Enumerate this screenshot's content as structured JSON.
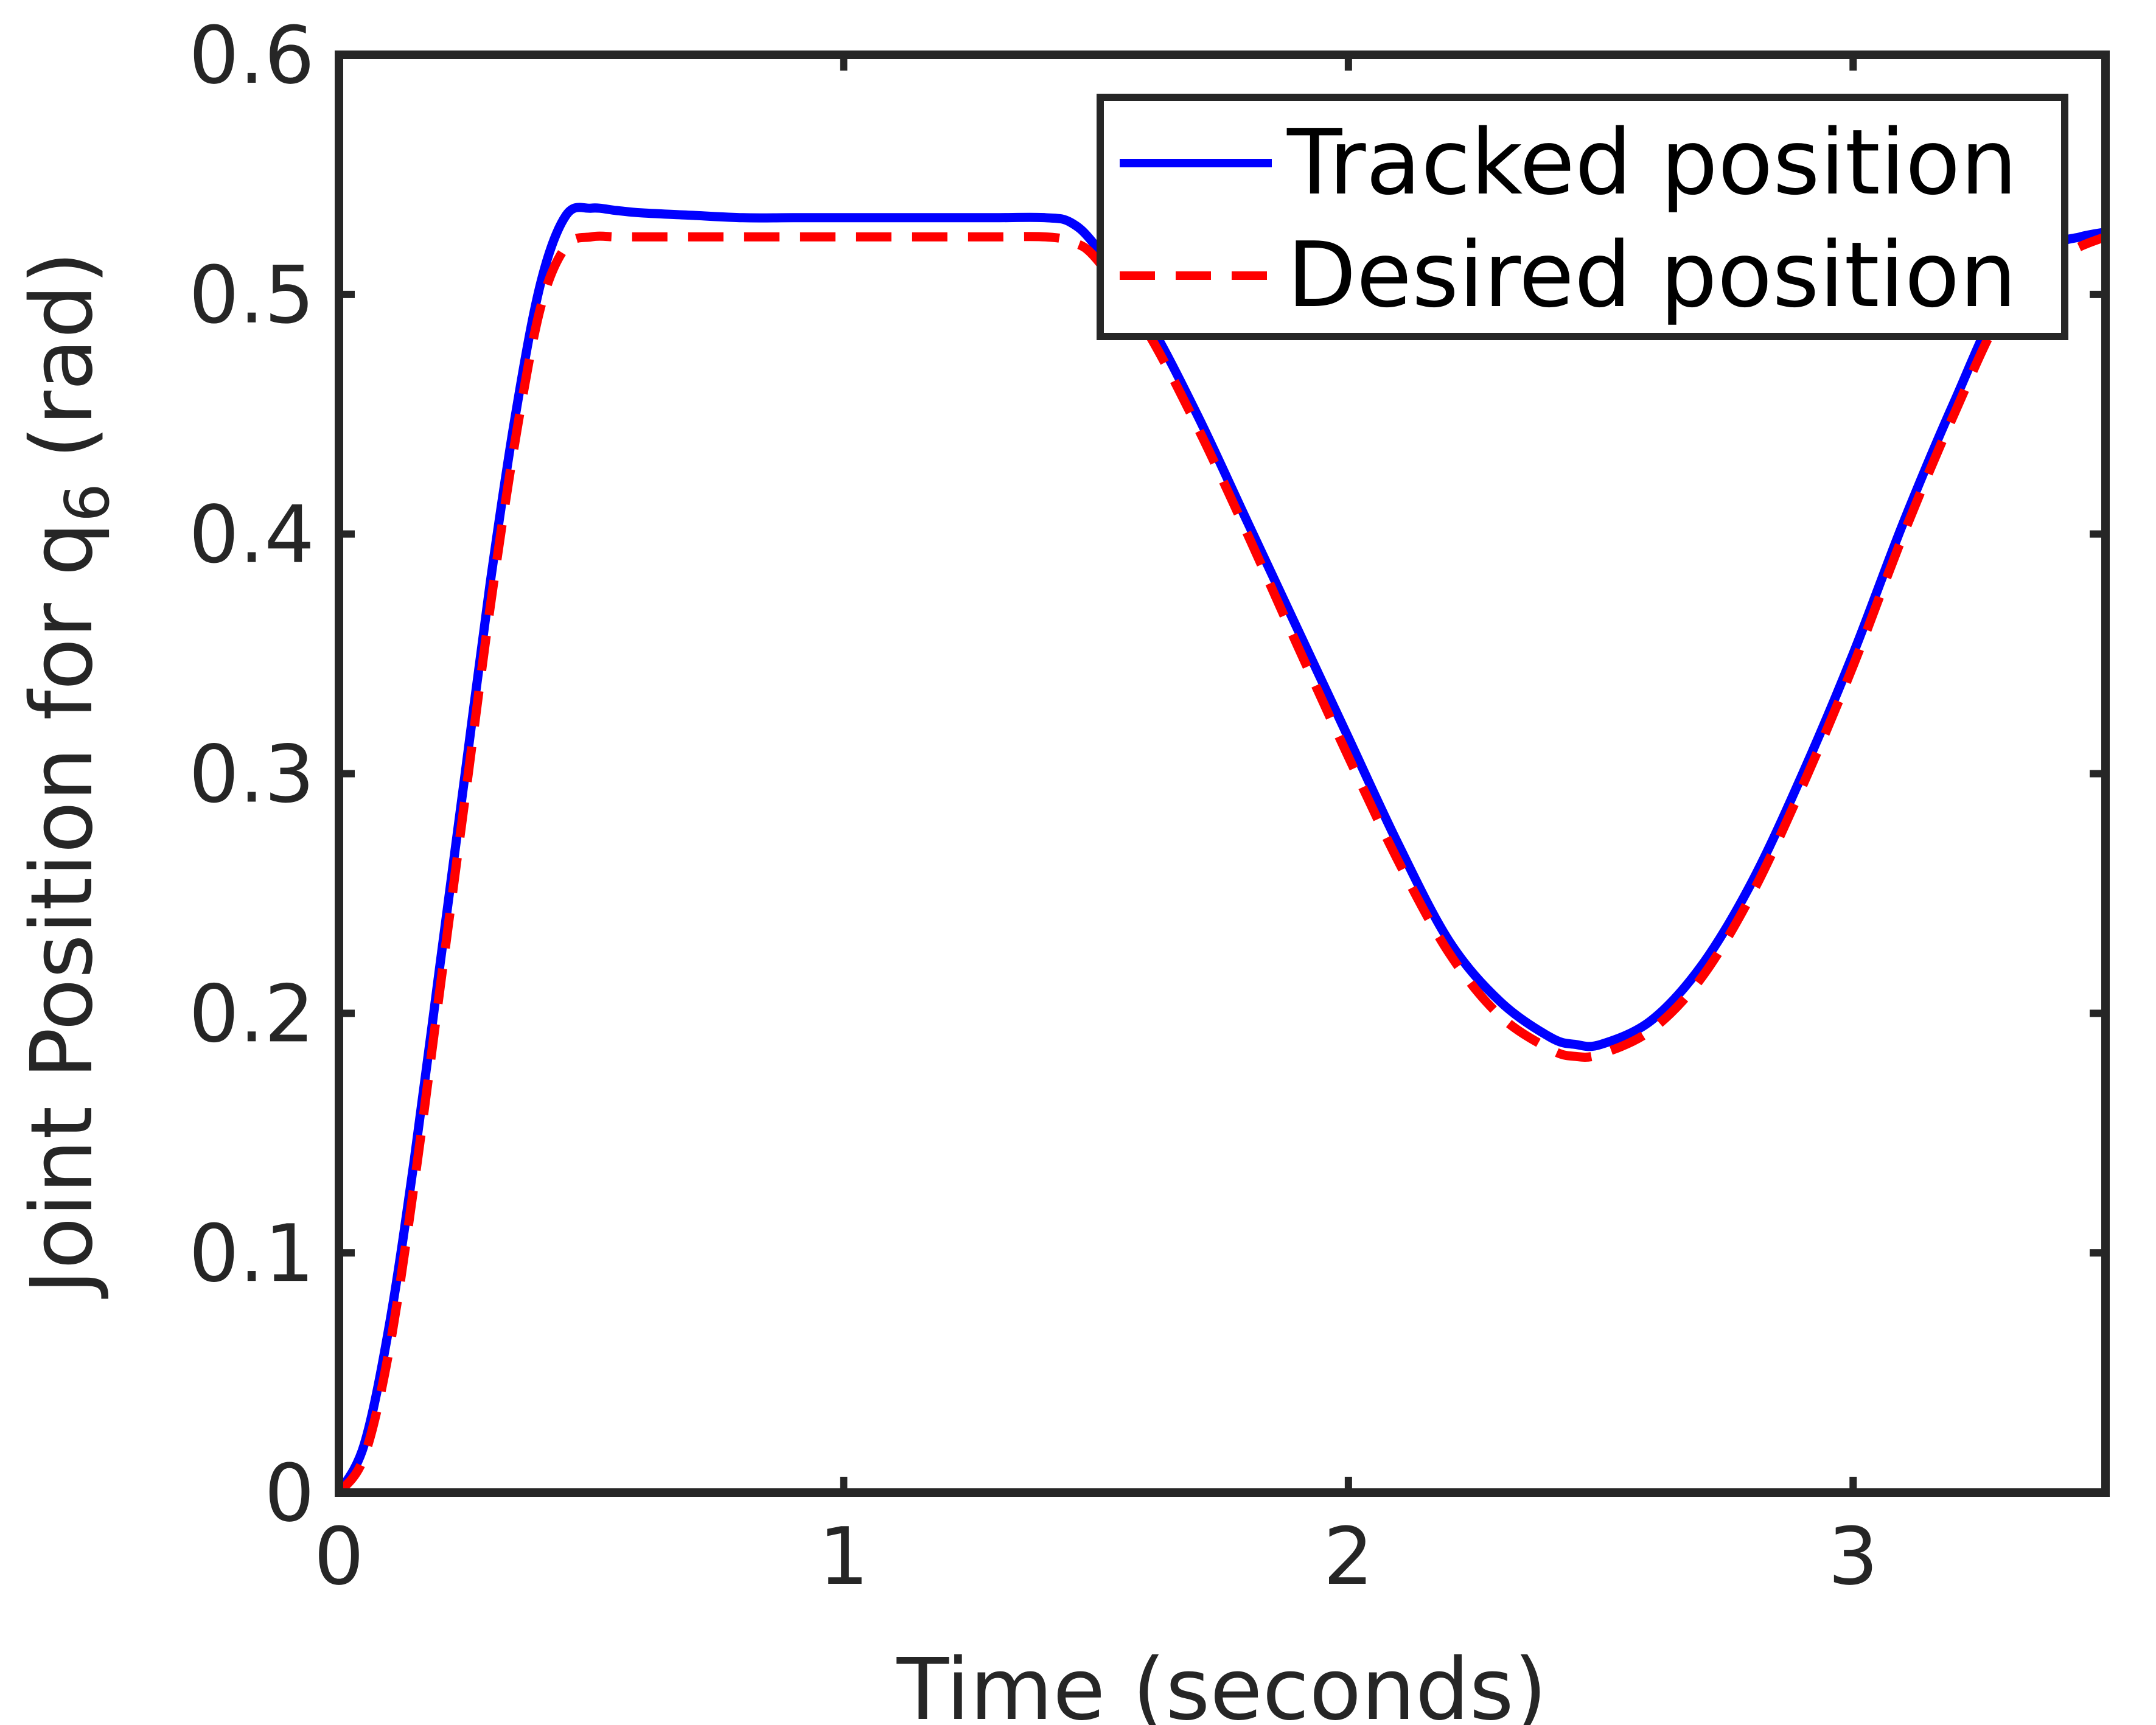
{
  "chart_data": {
    "type": "line",
    "title": "",
    "xlabel": "Time (seconds)",
    "ylabel_main": "Joint Position for q",
    "ylabel_subscript": "6",
    "ylabel_unit": "(rad)",
    "xlim": [
      0,
      3.5
    ],
    "ylim": [
      0,
      0.6
    ],
    "x_ticks": [
      0,
      1,
      2,
      3
    ],
    "x_tick_labels": [
      "0",
      "1",
      "2",
      "3"
    ],
    "y_ticks": [
      0,
      0.1,
      0.2,
      0.3,
      0.4,
      0.5,
      0.6
    ],
    "y_tick_labels": [
      "0",
      "0.1",
      "0.2",
      "0.3",
      "0.4",
      "0.5",
      "0.6"
    ],
    "grid": false,
    "legend_position": "top-right",
    "series": [
      {
        "name": "Tracked position",
        "color": "#0000ff",
        "style": "solid",
        "x": [
          0,
          0.05,
          0.1,
          0.15,
          0.2,
          0.25,
          0.3,
          0.35,
          0.4,
          0.45,
          0.5,
          0.55,
          0.6,
          0.7,
          0.8,
          0.9,
          1.0,
          1.1,
          1.2,
          1.3,
          1.4,
          1.45,
          1.5,
          1.6,
          1.7,
          1.8,
          1.9,
          2.0,
          2.1,
          2.2,
          2.3,
          2.4,
          2.45,
          2.5,
          2.6,
          2.7,
          2.8,
          2.9,
          3.0,
          3.1,
          3.2,
          3.3,
          3.4,
          3.45,
          3.5
        ],
        "y": [
          0,
          0.02,
          0.07,
          0.14,
          0.22,
          0.3,
          0.38,
          0.45,
          0.505,
          0.533,
          0.536,
          0.535,
          0.534,
          0.533,
          0.532,
          0.532,
          0.532,
          0.532,
          0.532,
          0.532,
          0.532,
          0.53,
          0.52,
          0.49,
          0.45,
          0.405,
          0.36,
          0.315,
          0.27,
          0.23,
          0.205,
          0.19,
          0.187,
          0.187,
          0.197,
          0.22,
          0.255,
          0.3,
          0.35,
          0.405,
          0.455,
          0.5,
          0.52,
          0.524,
          0.526
        ]
      },
      {
        "name": "Desired position",
        "color": "#ff0000",
        "style": "dashed",
        "x": [
          0,
          0.05,
          0.1,
          0.15,
          0.2,
          0.25,
          0.3,
          0.35,
          0.4,
          0.45,
          0.5,
          0.55,
          0.6,
          0.7,
          0.8,
          0.9,
          1.0,
          1.1,
          1.2,
          1.3,
          1.4,
          1.45,
          1.5,
          1.6,
          1.7,
          1.8,
          1.9,
          2.0,
          2.1,
          2.2,
          2.3,
          2.4,
          2.45,
          2.5,
          2.6,
          2.7,
          2.8,
          2.9,
          3.0,
          3.1,
          3.2,
          3.3,
          3.4,
          3.45,
          3.5
        ],
        "y": [
          0,
          0.015,
          0.06,
          0.13,
          0.21,
          0.29,
          0.37,
          0.44,
          0.495,
          0.52,
          0.524,
          0.524,
          0.524,
          0.524,
          0.524,
          0.524,
          0.524,
          0.524,
          0.524,
          0.524,
          0.524,
          0.522,
          0.515,
          0.485,
          0.445,
          0.4,
          0.353,
          0.307,
          0.263,
          0.225,
          0.199,
          0.185,
          0.182,
          0.183,
          0.193,
          0.215,
          0.25,
          0.295,
          0.345,
          0.4,
          0.45,
          0.494,
          0.514,
          0.52,
          0.524
        ]
      }
    ]
  },
  "colors": {
    "axes": "#262626",
    "legend_border": "#262626",
    "background": "#ffffff"
  }
}
